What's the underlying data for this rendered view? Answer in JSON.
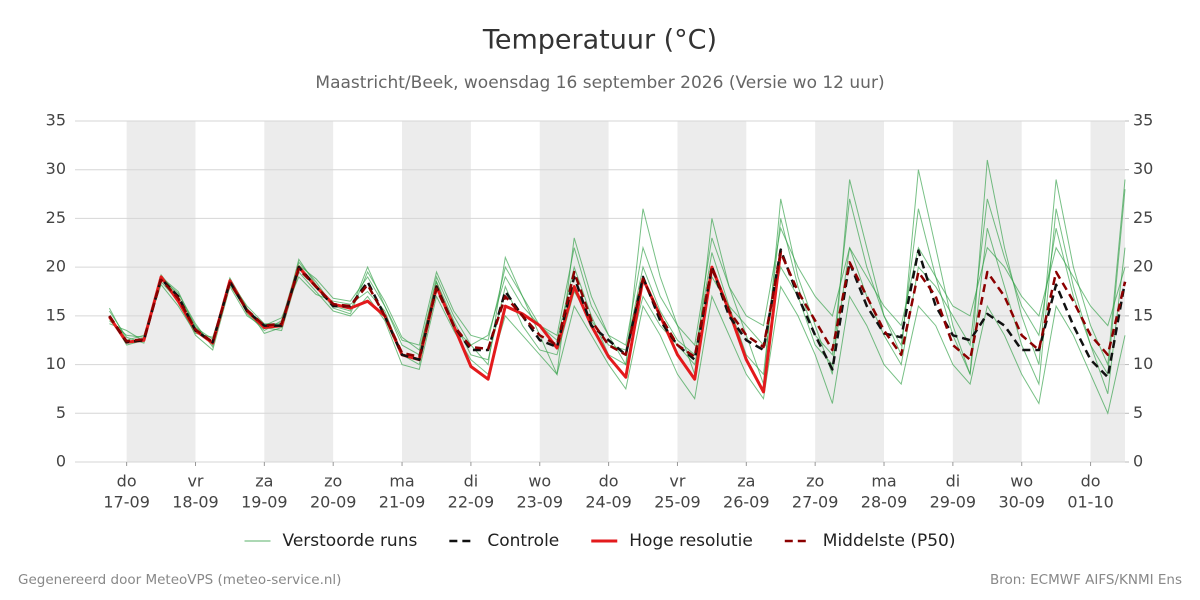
{
  "chart_data": {
    "type": "line",
    "title": "Temperatuur (°C)",
    "subtitle": "Maastricht/Beek, woensdag 16 september 2026 (Versie wo 12 uur)",
    "footer_left": "Gegenereerd door MeteoVPS (meteo-service.nl)",
    "footer_right": "Bron: ECMWF AIFS/KNMI Ens",
    "x": [
      -6,
      0,
      6,
      12,
      18,
      24,
      30,
      36,
      42,
      48,
      54,
      60,
      66,
      72,
      78,
      84,
      90,
      96,
      102,
      108,
      114,
      120,
      126,
      132,
      138,
      144,
      150,
      156,
      162,
      168,
      174,
      180,
      186,
      192,
      198,
      204,
      210,
      216,
      222,
      228,
      234,
      240,
      246,
      252,
      258,
      264,
      270,
      276,
      282,
      288,
      294,
      300,
      306,
      312,
      318,
      324,
      330,
      336,
      342,
      348
    ],
    "xlim": [
      -18,
      348
    ],
    "xticks": [
      {
        "value": 0,
        "label": "do",
        "sublabel": "17-09"
      },
      {
        "value": 24,
        "label": "vr",
        "sublabel": "18-09"
      },
      {
        "value": 48,
        "label": "za",
        "sublabel": "19-09"
      },
      {
        "value": 72,
        "label": "zo",
        "sublabel": "20-09"
      },
      {
        "value": 96,
        "label": "ma",
        "sublabel": "21-09"
      },
      {
        "value": 120,
        "label": "di",
        "sublabel": "22-09"
      },
      {
        "value": 144,
        "label": "wo",
        "sublabel": "23-09"
      },
      {
        "value": 168,
        "label": "do",
        "sublabel": "24-09"
      },
      {
        "value": 192,
        "label": "vr",
        "sublabel": "25-09"
      },
      {
        "value": 216,
        "label": "za",
        "sublabel": "26-09"
      },
      {
        "value": 240,
        "label": "zo",
        "sublabel": "27-09"
      },
      {
        "value": 264,
        "label": "ma",
        "sublabel": "28-09"
      },
      {
        "value": 288,
        "label": "di",
        "sublabel": "29-09"
      },
      {
        "value": 312,
        "label": "wo",
        "sublabel": "30-09"
      },
      {
        "value": 336,
        "label": "do",
        "sublabel": "01-10"
      }
    ],
    "ylim": [
      0,
      35
    ],
    "yticks": [
      0,
      5,
      10,
      15,
      20,
      25,
      30,
      35
    ],
    "y2lim": [
      0,
      35
    ],
    "y2ticks": [
      0,
      5,
      10,
      15,
      20,
      25,
      30,
      35
    ],
    "grid": true,
    "shade_alternate_days": true,
    "ensemble": {
      "name": "Verstoorde runs",
      "color": "#2e9e44",
      "members": [
        {
          "values": [
            15.5,
            12.8,
            12.2,
            19.2,
            17,
            14,
            12,
            18.8,
            15.2,
            13.5,
            14.5,
            20.5,
            18.5,
            16,
            15.5,
            20,
            16,
            12,
            11,
            19,
            15,
            12,
            10,
            21,
            17,
            13,
            9,
            23,
            17,
            13,
            10,
            26,
            19,
            14,
            9,
            25,
            18,
            13,
            8,
            27,
            19,
            14,
            9,
            29,
            22,
            15,
            11,
            30,
            22,
            14,
            9,
            31,
            22,
            15,
            10,
            29,
            20,
            14,
            10,
            29
          ]
        },
        {
          "values": [
            15,
            12,
            12.5,
            18.5,
            16.5,
            13,
            11.5,
            18,
            15,
            13.8,
            13.5,
            19.5,
            17.5,
            15.5,
            15,
            17,
            14.5,
            10,
            9.5,
            17,
            13.5,
            10.5,
            9,
            15,
            13,
            11,
            9,
            16,
            13,
            10,
            7.5,
            16,
            13,
            9,
            6.5,
            17,
            13,
            9,
            6.5,
            18,
            15,
            11,
            6,
            17,
            14,
            10,
            8,
            16,
            14,
            10,
            8,
            16,
            13,
            9,
            6,
            16,
            13,
            9,
            5,
            13
          ]
        },
        {
          "values": [
            14.5,
            13,
            12.8,
            19,
            17.5,
            13.8,
            12.6,
            18.6,
            16,
            14.2,
            14.2,
            20.2,
            18.8,
            16.8,
            16.5,
            19,
            16,
            12.5,
            12,
            19.5,
            15.5,
            13,
            12.5,
            20,
            17,
            14,
            13,
            22,
            16,
            13,
            12,
            22,
            17,
            14,
            12,
            23,
            18,
            15,
            14,
            24,
            20,
            17,
            15,
            22,
            19,
            16,
            14,
            22,
            19,
            16,
            15,
            22,
            20,
            17,
            15,
            22,
            19,
            16,
            14,
            20
          ]
        },
        {
          "values": [
            15.8,
            12.5,
            13,
            18.2,
            16,
            13.2,
            12.8,
            18.2,
            15.4,
            14,
            14.8,
            19,
            17.2,
            16.5,
            16.2,
            17.5,
            15.5,
            11,
            10,
            18.5,
            14.5,
            11,
            10.5,
            18,
            14,
            11.5,
            11,
            17.5,
            14.5,
            12,
            11.5,
            20,
            15.5,
            12.5,
            11,
            21.5,
            16,
            11,
            9,
            25,
            18,
            13,
            11,
            27,
            20,
            15,
            12,
            26,
            19,
            13,
            9,
            24,
            18,
            12,
            8,
            26,
            18,
            12,
            7,
            22
          ]
        },
        {
          "values": [
            14.2,
            13.5,
            12.4,
            18.9,
            17.3,
            14.2,
            11.8,
            18.9,
            15.8,
            13.2,
            13.8,
            20.8,
            18.2,
            15.8,
            15.2,
            19.5,
            16.5,
            12.8,
            11.5,
            18.5,
            13.8,
            12,
            13,
            19,
            16,
            14,
            12.5,
            20,
            15,
            11,
            10,
            17,
            14,
            12,
            10,
            19,
            16,
            14,
            12,
            20,
            17,
            12,
            10,
            22,
            17,
            13,
            10,
            20,
            18,
            15,
            12,
            27,
            21,
            16,
            13,
            24,
            17,
            12,
            9,
            28
          ]
        }
      ]
    },
    "series": [
      {
        "name": "Controle",
        "color": "#111111",
        "dash": true,
        "values": [
          15,
          12.3,
          12.5,
          18.8,
          17,
          13.5,
          12.3,
          18.5,
          15.5,
          14,
          14,
          20,
          18,
          16,
          16,
          18.5,
          15,
          11,
          10.5,
          18,
          14,
          11.5,
          11.5,
          17.5,
          15,
          12.5,
          11.8,
          19,
          14,
          12.5,
          11,
          19,
          14.5,
          12,
          10.5,
          20,
          15,
          12.5,
          11.5,
          21.8,
          17,
          13,
          9.5,
          20.5,
          16,
          13.2,
          12.8,
          21.7,
          16,
          13,
          12.5,
          15.2,
          14,
          11.5,
          11.5,
          18.2,
          14,
          10.5,
          8.7,
          18.5
        ]
      },
      {
        "name": "Hoge resolutie",
        "color": "#e31a1c",
        "dash": false,
        "values": [
          14.9,
          12.3,
          12.5,
          19,
          16.5,
          13.5,
          12.2,
          18.6,
          15.5,
          13.8,
          14,
          20,
          18,
          16.2,
          15.8,
          16.5,
          15,
          11,
          10.5,
          18,
          14,
          9.8,
          8.5,
          16,
          15.2,
          14,
          11.7,
          18,
          14,
          10.8,
          8.7,
          18.8,
          15,
          11,
          8.5,
          20,
          15.5,
          10.5,
          7.2,
          21.7,
          null,
          null,
          null,
          null,
          null,
          null,
          null,
          null,
          null,
          null,
          null,
          null,
          null,
          null,
          null,
          null,
          null,
          null,
          null,
          null
        ]
      },
      {
        "name": "Middelste (P50)",
        "color": "#8b0000",
        "dash": true,
        "values": [
          15,
          12.4,
          12.6,
          18.7,
          16.8,
          13.6,
          12.3,
          18.4,
          15.6,
          14,
          14.2,
          19.8,
          18,
          16.2,
          16,
          18.2,
          15,
          11.2,
          10.8,
          17.8,
          14,
          11.8,
          11.6,
          17,
          15,
          13,
          12,
          19.5,
          14.5,
          12,
          11,
          18.8,
          15,
          12,
          10.8,
          20,
          15.5,
          13,
          11.8,
          21.5,
          17.5,
          14.5,
          11.5,
          20.5,
          17,
          13.5,
          11,
          19.5,
          17,
          12,
          10.5,
          19.5,
          17,
          13,
          11.5,
          19.5,
          16.5,
          13,
          11,
          18.5
        ]
      }
    ]
  }
}
